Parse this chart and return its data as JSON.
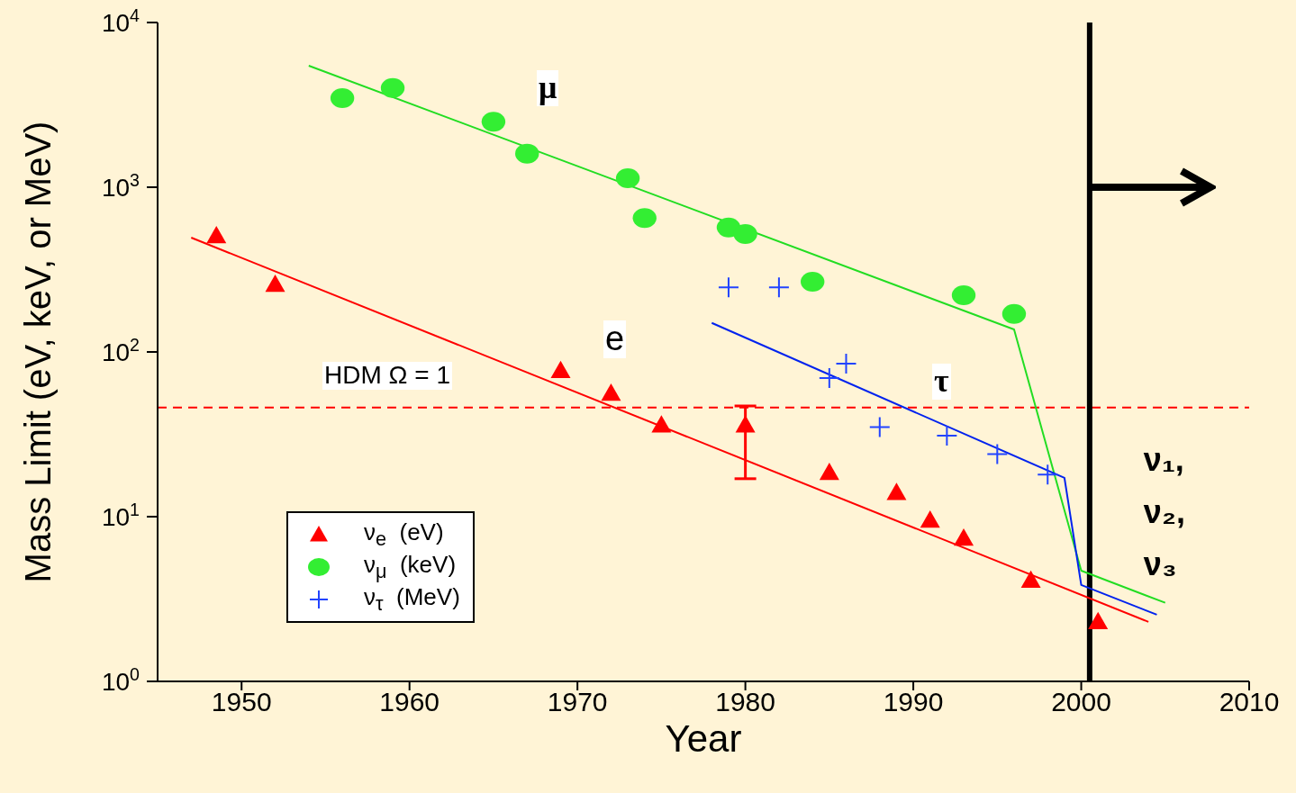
{
  "chart_data": {
    "type": "scatter",
    "xlabel": "Year",
    "ylabel": "Mass Limit (eV, keV, or MeV)",
    "log": "y",
    "xlim": [
      1945,
      2010
    ],
    "xticks": [
      1950,
      1960,
      1970,
      1980,
      1990,
      2000,
      2010
    ],
    "ylim": [
      1,
      10000
    ],
    "yticks": [
      {
        "value": 1,
        "label": "10$^{0}$"
      },
      {
        "value": 10,
        "label": "10$^{1}$"
      },
      {
        "value": 100,
        "label": "10$^{2}$"
      },
      {
        "value": 1000,
        "label": "10$^{3}$"
      },
      {
        "value": 10000,
        "label": "10$^{4}$"
      }
    ],
    "legend": "bottom left",
    "series": [
      {
        "name": "ν$_{e}$  (eV)",
        "marker": "triangle",
        "color": "#ff0000",
        "x": [
          1948.5,
          1952,
          1969,
          1972,
          1975,
          1980,
          1985,
          1989,
          1991,
          1993,
          1997,
          2001
        ],
        "values": [
          507,
          257,
          77,
          56,
          36,
          36,
          18.5,
          14,
          9.5,
          7.4,
          4.1,
          2.3
        ],
        "errors": [
          null,
          null,
          null,
          null,
          null,
          [
            17,
            47
          ],
          null,
          null,
          null,
          null,
          null,
          null
        ]
      },
      {
        "name": "ν$_{μ}$  (keV)",
        "marker": "circle",
        "color": "#33ee33",
        "x": [
          1956,
          1959,
          1965,
          1967,
          1973,
          1974,
          1979,
          1980,
          1984,
          1993,
          1996
        ],
        "values": [
          3475,
          4000,
          2500,
          1600,
          1135,
          650,
          570,
          520,
          267,
          221,
          170
        ]
      },
      {
        "name": "ν$_{τ}$  (MeV)",
        "marker": "cross",
        "color": "#2244ff",
        "x": [
          1979,
          1982,
          1985,
          1986,
          1988,
          1992,
          1995,
          1998
        ],
        "values": [
          247,
          247,
          69.5,
          85,
          35,
          31,
          24,
          18
        ]
      },
      {
        "type": "line",
        "color": "#ff0000",
        "x": [
          1947,
          2004
        ],
        "values": [
          494,
          2.3
        ]
      },
      {
        "type": "line",
        "color": "#22dd22",
        "x": [
          1954,
          1996,
          2000,
          2005
        ],
        "values": [
          5470,
          137,
          4.7,
          3.0
        ]
      },
      {
        "type": "line",
        "color": "#0022ee",
        "x": [
          1978,
          1999,
          2000,
          2004.5
        ],
        "values": [
          150,
          17.2,
          3.85,
          2.54
        ]
      }
    ],
    "ref_lines": [
      {
        "axis": "y",
        "value": 46,
        "color": "#ff0000",
        "line_style": "dashed"
      },
      {
        "axis": "x",
        "value": 2000.5,
        "label": "ν₁, ν₂, ν₃",
        "color": "#000000",
        "line_style": "solid"
      }
    ],
    "annotations": [
      "μ",
      "e",
      "HDM Ω = 1",
      "τ"
    ]
  }
}
